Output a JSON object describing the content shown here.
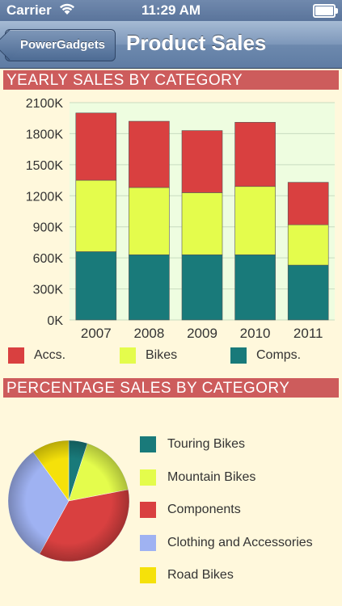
{
  "status_bar": {
    "carrier": "Carrier",
    "time": "11:29 AM"
  },
  "nav": {
    "back_label": "PowerGadgets",
    "title": "Product Sales"
  },
  "yearly": {
    "header": "YEARLY SALES BY CATEGORY",
    "legend": [
      {
        "label": "Accs.",
        "color": "#d94040"
      },
      {
        "label": "Bikes",
        "color": "#e4fc4c"
      },
      {
        "label": "Comps.",
        "color": "#197a7a"
      }
    ]
  },
  "percentage": {
    "header": "PERCENTAGE SALES BY CATEGORY",
    "legend": [
      {
        "label": "Touring Bikes",
        "color": "#197a7a"
      },
      {
        "label": "Mountain Bikes",
        "color": "#e4fc4c"
      },
      {
        "label": "Components",
        "color": "#d94040"
      },
      {
        "label": "Clothing and Accessories",
        "color": "#9fb2f2"
      },
      {
        "label": "Road Bikes",
        "color": "#f5e10a"
      }
    ]
  },
  "chart_data": [
    {
      "type": "bar",
      "stacked": true,
      "title": "YEARLY SALES BY CATEGORY",
      "categories": [
        "2007",
        "2008",
        "2009",
        "2010",
        "2011"
      ],
      "series": [
        {
          "name": "Comps.",
          "color": "#197a7a",
          "values": [
            660,
            630,
            630,
            630,
            530
          ]
        },
        {
          "name": "Bikes",
          "color": "#e4fc4c",
          "values": [
            690,
            650,
            600,
            660,
            390
          ]
        },
        {
          "name": "Accs.",
          "color": "#d94040",
          "values": [
            650,
            640,
            600,
            620,
            410
          ]
        }
      ],
      "ylim": [
        0,
        2100
      ],
      "yticks": [
        0,
        300,
        600,
        900,
        1200,
        1500,
        1800,
        2100
      ],
      "ytick_labels": [
        "0K",
        "300K",
        "600K",
        "900K",
        "1200K",
        "1500K",
        "1800K",
        "2100K"
      ],
      "grid": true,
      "legend_position": "bottom"
    },
    {
      "type": "pie",
      "title": "PERCENTAGE SALES BY CATEGORY",
      "categories": [
        "Touring Bikes",
        "Mountain Bikes",
        "Components",
        "Clothing and Accessories",
        "Road Bikes"
      ],
      "values": [
        5,
        17,
        36,
        32,
        10
      ],
      "colors": [
        "#197a7a",
        "#e4fc4c",
        "#d94040",
        "#9fb2f2",
        "#f5e10a"
      ],
      "legend_position": "right"
    }
  ]
}
